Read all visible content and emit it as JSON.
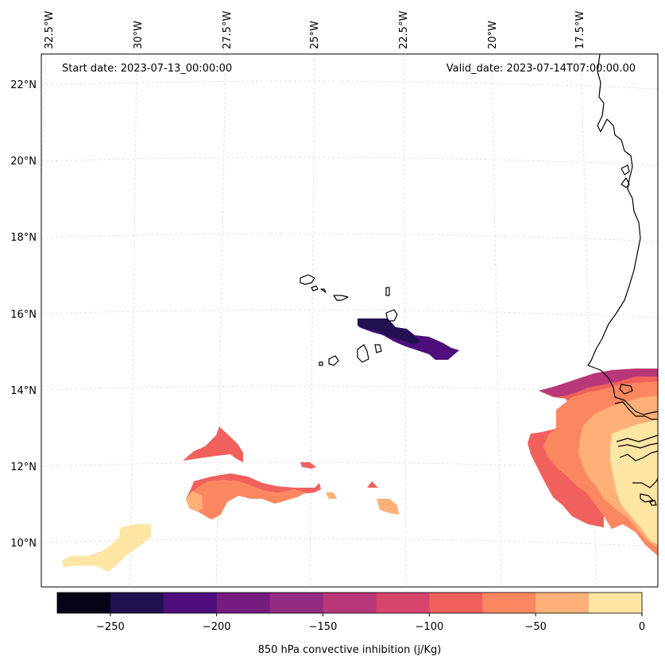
{
  "map": {
    "start_label": "Start date: 2023-07-13_00:00:00",
    "valid_label": "Valid_date: 2023-07-14T07:00:00.00",
    "lon_labels": [
      "32.5°W",
      "30°W",
      "27.5°W",
      "25°W",
      "22.5°W",
      "20°W",
      "17.5°W"
    ],
    "lat_labels": [
      "22°N",
      "20°N",
      "18°N",
      "16°N",
      "14°N",
      "12°N",
      "10°N"
    ],
    "coastline_color": "#000000",
    "gridline_color": "#d9d9d9"
  },
  "colorbar": {
    "label": "850 hPa convective inhibition (j/Kg)",
    "ticks": [
      "−250",
      "−200",
      "−150",
      "−100",
      "−50",
      "0"
    ],
    "levels": [
      -275,
      -250,
      -225,
      -200,
      -175,
      -150,
      -125,
      -100,
      -75,
      -50,
      -25,
      0
    ],
    "colors": [
      "#050416",
      "#221150",
      "#4e0e7c",
      "#761c81",
      "#942b80",
      "#b73779",
      "#d6456c",
      "#f0605d",
      "#fb8761",
      "#feb078",
      "#fde5a4"
    ]
  },
  "fields": {
    "cin_dark_band": "CIN −250 to −200 patch near Cape Verde",
    "cin_west_africa": "CIN −150 to 0 over West African coast",
    "cin_atlantic": "CIN −125 to 0 patches over eastern Atlantic"
  }
}
